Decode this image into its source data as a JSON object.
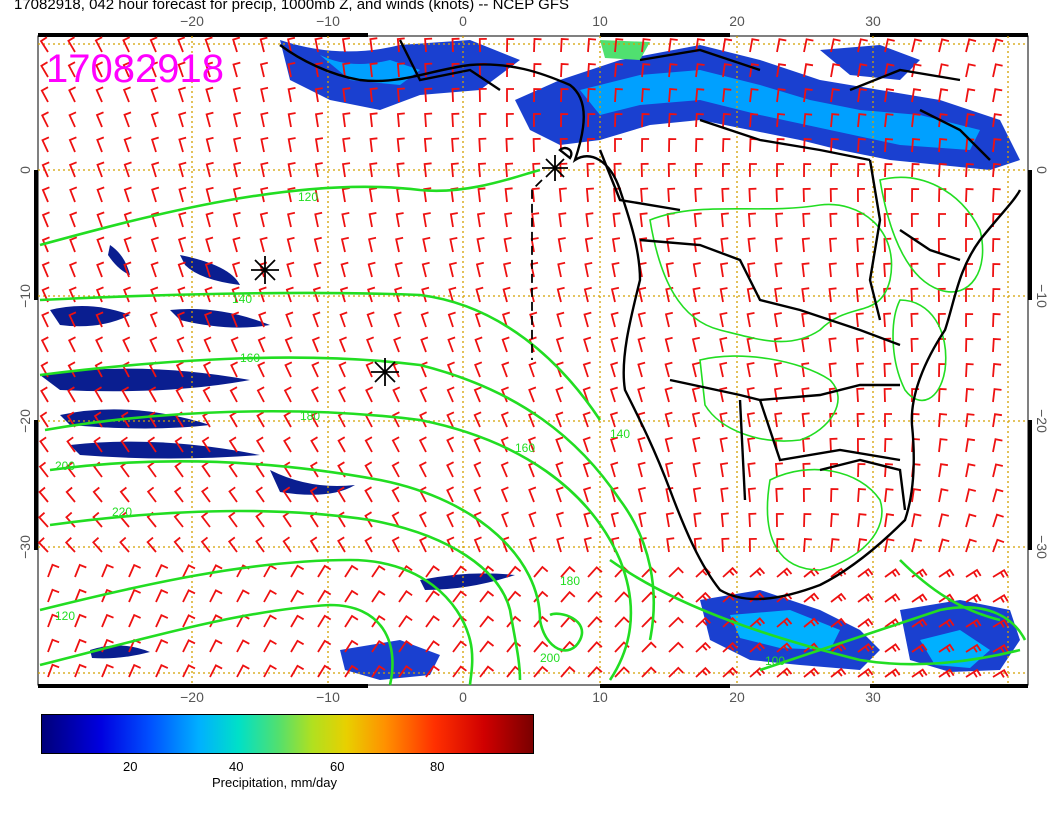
{
  "title": "17082918, 042 hour forecast for precip, 1000mb Z, and winds (knots) -- NCEP GFS",
  "stamp": "17082918",
  "axes": {
    "lon_ticks": [
      "−20",
      "−10",
      "0",
      "10",
      "20",
      "30"
    ],
    "lat_ticks": [
      "0",
      "−10",
      "−20",
      "−30"
    ]
  },
  "contour_labels": [
    "120",
    "140",
    "160",
    "180",
    "200",
    "220",
    "180",
    "200",
    "160",
    "140",
    "120",
    "100"
  ],
  "colorbar": {
    "title": "Precipitation, mm/day",
    "tick_labels": [
      "20",
      "40",
      "60",
      "80"
    ],
    "range": [
      0,
      100
    ],
    "colors": [
      "#00007a",
      "#0000e0",
      "#0050ff",
      "#00b0ff",
      "#00e0c8",
      "#50e070",
      "#b0e020",
      "#e8d000",
      "#ff9000",
      "#ff3000",
      "#d00000",
      "#7a0000"
    ]
  },
  "colors": {
    "contours": "#22dd22",
    "barbs": "#ee1111",
    "coast": "#000000",
    "grid": "#d4a000",
    "stamp": "#ff00ff"
  },
  "markers": [
    "asterisk",
    "asterisk",
    "asterisk"
  ]
}
